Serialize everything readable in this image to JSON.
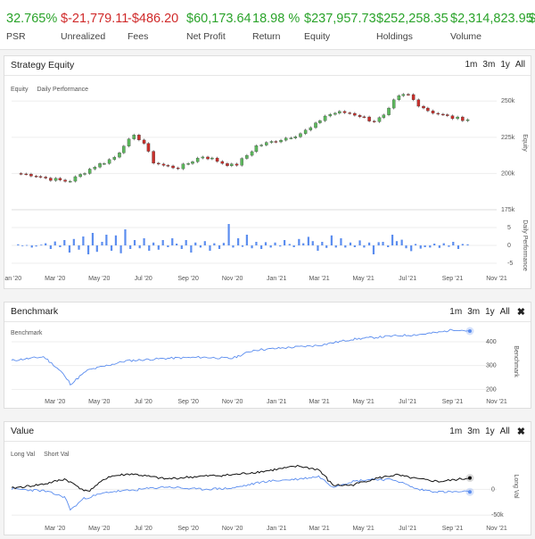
{
  "stats": [
    {
      "value": "32.765%",
      "label": "PSR",
      "tone": "pos"
    },
    {
      "value": "$-21,779.11",
      "label": "Unrealized",
      "tone": "neg"
    },
    {
      "value": "-$486.20",
      "label": "Fees",
      "tone": "neg"
    },
    {
      "value": "$60,173.64",
      "label": "Net Profit",
      "tone": "pos"
    },
    {
      "value": "18.98 %",
      "label": "Return",
      "tone": "pos"
    },
    {
      "value": "$237,957.73",
      "label": "Equity",
      "tone": "pos"
    },
    {
      "value": "$252,258.35",
      "label": "Holdings",
      "tone": "pos"
    },
    {
      "value": "$2,314,823.95",
      "label": "Volume",
      "tone": "pos"
    },
    {
      "value": "$",
      "label": "",
      "tone": "pos"
    }
  ],
  "controls": {
    "m1": "1m",
    "m3": "3m",
    "y1": "1y",
    "all": "All",
    "close": "✖"
  },
  "panels": {
    "equity": {
      "title": "Strategy Equity",
      "legend_equity": "Equity",
      "legend_daily": "Daily Performance",
      "axis_top": "Equity",
      "axis_bottom": "Daily Performance"
    },
    "benchmark": {
      "title": "Benchmark",
      "legend": "Benchmark",
      "axis": "Benchmark"
    },
    "value": {
      "title": "Value",
      "legend_long": "Long Val",
      "legend_short": "Short Val",
      "axis": "Long Val"
    }
  },
  "x_ticks": [
    "Jan '20",
    "Mar '20",
    "May '20",
    "Jul '20",
    "Sep '20",
    "Nov '20",
    "Jan '21",
    "Mar '21",
    "May '21",
    "Jul '21",
    "Sep '21",
    "Nov '21"
  ],
  "x_ticks_short": [
    "Mar '20",
    "May '20",
    "Jul '20",
    "Sep '20",
    "Nov '20",
    "Jan '21",
    "Mar '21",
    "May '21",
    "Jul '21",
    "Sep '21",
    "Nov '21"
  ],
  "colors": {
    "up": "#5cb85c",
    "down": "#c9302c",
    "daily": "#5b8def",
    "benchmark": "#5b8def",
    "long": "#111111",
    "short": "#5b8def",
    "positive_text": "#2aa32a",
    "negative_text": "#d02a2a"
  },
  "chart_data": [
    {
      "type": "candlestick",
      "title": "Strategy Equity",
      "ylabel": "Equity",
      "yticks": [
        "175k",
        "200k",
        "225k",
        "250k"
      ],
      "ylim": [
        175000,
        260000
      ],
      "xlim": [
        "2020-01-01",
        "2021-11-01"
      ],
      "close_series": [
        [
          "2020-01-08",
          200000
        ],
        [
          "2020-02-01",
          199000
        ],
        [
          "2020-02-20",
          196500
        ],
        [
          "2020-03-20",
          194500
        ],
        [
          "2020-04-05",
          199000
        ],
        [
          "2020-04-25",
          205000
        ],
        [
          "2020-05-10",
          208000
        ],
        [
          "2020-05-25",
          212000
        ],
        [
          "2020-06-05",
          220000
        ],
        [
          "2020-06-20",
          226000
        ],
        [
          "2020-07-01",
          222000
        ],
        [
          "2020-07-15",
          208000
        ],
        [
          "2020-08-01",
          205000
        ],
        [
          "2020-08-20",
          204000
        ],
        [
          "2020-09-05",
          208000
        ],
        [
          "2020-09-20",
          212000
        ],
        [
          "2020-10-05",
          210000
        ],
        [
          "2020-10-20",
          207000
        ],
        [
          "2020-11-05",
          205000
        ],
        [
          "2020-11-20",
          212000
        ],
        [
          "2020-12-05",
          219000
        ],
        [
          "2020-12-20",
          221000
        ],
        [
          "2021-01-10",
          224000
        ],
        [
          "2021-02-01",
          227000
        ],
        [
          "2021-02-20",
          232000
        ],
        [
          "2021-03-10",
          240000
        ],
        [
          "2021-03-25",
          242000
        ],
        [
          "2021-04-10",
          242000
        ],
        [
          "2021-04-25",
          240000
        ],
        [
          "2021-05-15",
          236000
        ],
        [
          "2021-06-01",
          240000
        ],
        [
          "2021-06-15",
          252000
        ],
        [
          "2021-07-01",
          255000
        ],
        [
          "2021-07-15",
          248000
        ],
        [
          "2021-08-01",
          243000
        ],
        [
          "2021-08-20",
          240000
        ],
        [
          "2021-09-05",
          238000
        ],
        [
          "2021-09-20",
          237500
        ]
      ]
    },
    {
      "type": "bar",
      "title": "Daily Performance",
      "ylabel": "Daily Performance",
      "yticks": [
        "5",
        "0",
        "-5"
      ],
      "ylim": [
        -6,
        8
      ],
      "values": [
        0.3,
        -0.2,
        0.1,
        -0.6,
        -0.3,
        0.2,
        0.6,
        -1.0,
        1.1,
        -0.5,
        1.5,
        -2.0,
        1.8,
        -1.2,
        2.5,
        -2.5,
        3.5,
        -1.8,
        1.0,
        3.0,
        -1.5,
        2.8,
        -2.2,
        4.5,
        -1.0,
        1.5,
        -0.8,
        2.0,
        -1.5,
        0.8,
        -1.2,
        1.5,
        -0.5,
        2.0,
        0.5,
        -1.0,
        1.5,
        -2.0,
        0.8,
        -0.6,
        1.2,
        -1.5,
        0.6,
        -1.0,
        0.7,
        6.0,
        -0.6,
        2.0,
        -0.4,
        3.0,
        -0.8,
        1.0,
        -1.0,
        0.9,
        -0.6,
        0.8,
        -0.3,
        1.5,
        0.4,
        -0.5,
        1.8,
        0.6,
        2.4,
        1.2,
        -1.5,
        1.0,
        -0.7,
        2.8,
        -0.6,
        2.0,
        -0.6,
        0.8,
        -0.5,
        1.4,
        -0.6,
        0.8,
        -2.5,
        0.9,
        1.0,
        -0.5,
        3.0,
        1.2,
        1.6,
        -0.8,
        -1.6,
        0.4,
        -0.9,
        -0.5,
        -0.6,
        0.5,
        -0.7,
        0.6,
        -0.4,
        1.0,
        -1.0,
        0.4,
        0.3
      ]
    },
    {
      "type": "line",
      "title": "Benchmark",
      "ylabel": "Benchmark",
      "yticks": [
        "200",
        "300",
        "400"
      ],
      "ylim": [
        190,
        460
      ],
      "series": [
        {
          "name": "Benchmark",
          "x": [
            "2020-01-01",
            "2020-02-15",
            "2020-03-10",
            "2020-03-23",
            "2020-04-15",
            "2020-06-08",
            "2020-08-01",
            "2020-09-20",
            "2020-11-01",
            "2020-12-01",
            "2021-01-15",
            "2021-03-01",
            "2021-04-15",
            "2021-05-15",
            "2021-06-15",
            "2021-07-15",
            "2021-08-15",
            "2021-09-05",
            "2021-09-25"
          ],
          "values": [
            321,
            337,
            275,
            222,
            280,
            320,
            330,
            335,
            330,
            365,
            375,
            385,
            410,
            418,
            425,
            430,
            440,
            452,
            445
          ]
        }
      ]
    },
    {
      "type": "line",
      "title": "Value",
      "ylabel": "Long Val",
      "yticks": [
        "0",
        "-50k"
      ],
      "ylim": [
        -60000,
        75000
      ],
      "series": [
        {
          "name": "Long Val",
          "x": [
            "2020-01-01",
            "2020-02-15",
            "2020-03-15",
            "2020-04-15",
            "2020-05-15",
            "2020-06-15",
            "2020-08-01",
            "2020-09-15",
            "2020-11-01",
            "2020-12-15",
            "2021-02-01",
            "2021-03-01",
            "2021-03-20",
            "2021-04-15",
            "2021-05-15",
            "2021-06-15",
            "2021-07-15",
            "2021-08-15",
            "2021-09-25"
          ],
          "values": [
            2000,
            10000,
            20000,
            -5000,
            25000,
            30000,
            20000,
            25000,
            28000,
            35000,
            45000,
            38000,
            8000,
            8000,
            20000,
            28000,
            20000,
            15000,
            22000
          ]
        },
        {
          "name": "Short Val",
          "x": [
            "2020-01-01",
            "2020-02-15",
            "2020-03-15",
            "2020-03-23",
            "2020-04-10",
            "2020-05-15",
            "2020-06-15",
            "2020-08-01",
            "2020-09-15",
            "2020-11-01",
            "2020-12-15",
            "2021-02-01",
            "2021-03-01",
            "2021-03-20",
            "2021-04-15",
            "2021-05-15",
            "2021-06-15",
            "2021-07-15",
            "2021-08-15",
            "2021-09-25"
          ],
          "values": [
            1000,
            -3000,
            -15000,
            -40000,
            -18000,
            -5000,
            -2000,
            5000,
            0,
            2000,
            15000,
            20000,
            25000,
            5000,
            15000,
            20000,
            18000,
            0,
            -5000,
            -5000
          ]
        }
      ]
    }
  ]
}
